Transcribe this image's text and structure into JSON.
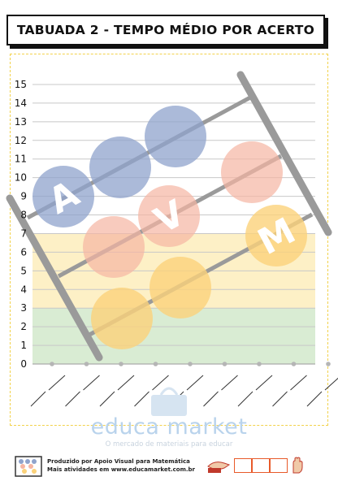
{
  "title": "TABUADA 2 - TEMPO MÉDIO POR ACERTO",
  "chart_data": {
    "type": "line",
    "y_ticks": [
      0,
      1,
      2,
      3,
      4,
      5,
      6,
      7,
      8,
      9,
      10,
      11,
      12,
      13,
      14,
      15
    ],
    "ylim": [
      0,
      15
    ],
    "grid": true,
    "bands": [
      {
        "from": 0,
        "to": 3,
        "color": "#d9ecd3"
      },
      {
        "from": 3,
        "to": 7,
        "color": "#fdf0c6"
      }
    ],
    "x_slots": 9,
    "values": [
      0,
      0,
      0,
      0,
      0,
      0,
      0,
      0,
      0
    ]
  },
  "brand": {
    "name": "educa market",
    "tagline": "O mercado de materiais para educar"
  },
  "footer": {
    "line1": "Produzido por Apoio Visual para Matemática",
    "line2": "Mais atividades em www.educamarket.com.br"
  },
  "colors": {
    "blue_bead": "#8fa3cc",
    "pink_bead": "#f5b5a2",
    "yellow_bead": "#fbd27a",
    "abacus_rod": "#9a9a9a",
    "accent_orange": "#e85a2a"
  },
  "decoration": {
    "bead_letters": [
      "A",
      "V",
      "M"
    ]
  }
}
